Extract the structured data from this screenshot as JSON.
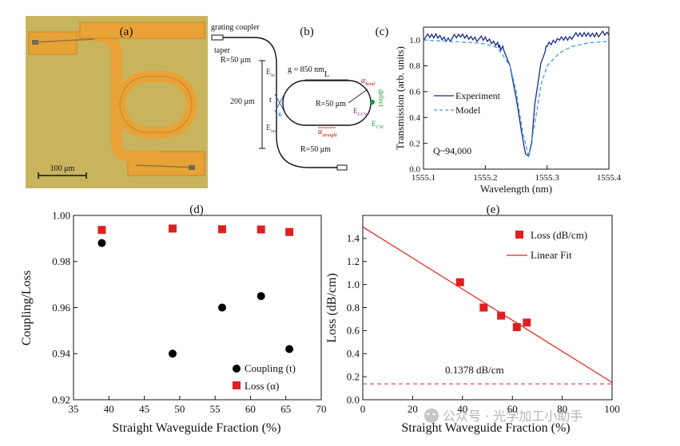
{
  "colors": {
    "chip_bg": "#c9b45e",
    "metal": "#e8a235",
    "metal_dark": "#c6842a",
    "experiment": "#1a2a8a",
    "model": "#3ba2d8",
    "loss_marker": "#e02020",
    "fit_line": "#e02020",
    "coupling_marker": "#000000",
    "red_label": "#c00000",
    "green_label": "#1a9a3a",
    "blue_label": "#3060c0",
    "purple_label": "#6a2a90"
  },
  "panel_a": {
    "label": "(a)",
    "scale_bar": "100 μm"
  },
  "panel_b": {
    "label": "(b)",
    "grating_coupler": "grating coupler",
    "taper": "taper",
    "r_top": "R=50 μm",
    "r_bottom": "R=50 μm",
    "r_center": "R=50 μm",
    "gap": "g = 850 nm",
    "length": "L",
    "height": "200 μm",
    "e_in": "E",
    "e_in_sub": "in",
    "e_out": "E",
    "e_out_sub": "out",
    "t_label": "t",
    "kappa_label": "κ",
    "alpha_bend": "α",
    "alpha_bend_sub": "bend",
    "alpha_straight": "α",
    "alpha_straight_sub": "straight",
    "e_ccw": "E",
    "e_ccw_sub": "CCW",
    "e_cw": "E",
    "e_cw_sub": "CW",
    "defect": "defect"
  },
  "panel_c": {
    "label": "(c)",
    "ylabel": "Transmission (arb. units)",
    "xlabel": "Wavelength (nm)",
    "xticks": [
      "1555.1",
      "1555.2",
      "1555.3",
      "1555.4"
    ],
    "yticks": [
      "0.0",
      "0.2",
      "0.4",
      "0.6",
      "0.8",
      "1.0"
    ],
    "legend": [
      "Experiment",
      "Model"
    ],
    "annotation": "Q~94,000"
  },
  "panel_d": {
    "label": "(d)",
    "ylabel": "Coupling/Loss",
    "xlabel": "Straight Waveguide Fraction (%)",
    "xticks": [
      "35",
      "40",
      "45",
      "50",
      "55",
      "60",
      "65",
      "70"
    ],
    "yticks": [
      "0.92",
      "0.94",
      "0.96",
      "0.98",
      "1.00"
    ],
    "legend": [
      "Coupling (t)",
      "Loss (α)"
    ]
  },
  "panel_e": {
    "label": "(e)",
    "ylabel": "Loss (dB/cm)",
    "xlabel": "Straight Waveguide Fraction (%)",
    "xticks": [
      "0",
      "20",
      "40",
      "60",
      "80",
      "100"
    ],
    "yticks": [
      "0.0",
      "0.2",
      "0.4",
      "0.6",
      "0.8",
      "1.0",
      "1.2",
      "1.4"
    ],
    "legend": [
      "Loss (dB/cm)",
      "Linear Fit"
    ],
    "annotation": "0.1378 dB/cm"
  },
  "watermark": "公众号 · 光学加工小助手",
  "chart_data": [
    {
      "type": "line",
      "title": "(c)",
      "xlabel": "Wavelength (nm)",
      "ylabel": "Transmission (arb. units)",
      "xlim": [
        1555.1,
        1555.4
      ],
      "ylim": [
        0.0,
        1.1
      ],
      "series": [
        {
          "name": "Experiment",
          "x": [
            1555.1,
            1555.12,
            1555.14,
            1555.16,
            1555.18,
            1555.2,
            1555.22,
            1555.23,
            1555.24,
            1555.25,
            1555.26,
            1555.265,
            1555.27,
            1555.275,
            1555.28,
            1555.29,
            1555.3,
            1555.32,
            1555.34,
            1555.36,
            1555.38,
            1555.4
          ],
          "y": [
            1.02,
            1.03,
            1.01,
            1.03,
            1.02,
            1.0,
            0.97,
            0.92,
            0.8,
            0.55,
            0.25,
            0.12,
            0.1,
            0.2,
            0.5,
            0.82,
            0.95,
            1.01,
            1.03,
            1.04,
            1.05,
            1.04
          ]
        },
        {
          "name": "Model",
          "x": [
            1555.1,
            1555.14,
            1555.18,
            1555.2,
            1555.22,
            1555.24,
            1555.25,
            1555.26,
            1555.27,
            1555.28,
            1555.29,
            1555.3,
            1555.32,
            1555.34,
            1555.37,
            1555.4
          ],
          "y": [
            1.0,
            0.99,
            0.98,
            0.97,
            0.94,
            0.8,
            0.6,
            0.3,
            0.1,
            0.35,
            0.65,
            0.8,
            0.9,
            0.95,
            0.98,
            0.99
          ]
        }
      ]
    },
    {
      "type": "scatter",
      "title": "(d)",
      "xlabel": "Straight Waveguide Fraction (%)",
      "ylabel": "Coupling/Loss",
      "xlim": [
        35,
        70
      ],
      "ylim": [
        0.92,
        1.0
      ],
      "legend_position": "bottom-right",
      "series": [
        {
          "name": "Coupling (t)",
          "x": [
            39,
            49,
            56,
            61.5,
            65.5
          ],
          "y": [
            0.988,
            0.94,
            0.96,
            0.965,
            0.942
          ]
        },
        {
          "name": "Loss (α)",
          "x": [
            39,
            49,
            56,
            61.5,
            65.5
          ],
          "y": [
            0.9937,
            0.9943,
            0.994,
            0.9939,
            0.9928
          ]
        }
      ]
    },
    {
      "type": "scatter",
      "title": "(e)",
      "xlabel": "Straight Waveguide Fraction (%)",
      "ylabel": "Loss (dB/cm)",
      "xlim": [
        0,
        100
      ],
      "ylim": [
        0.0,
        1.6
      ],
      "legend_position": "top-right",
      "series": [
        {
          "name": "Loss (dB/cm)",
          "x": [
            39,
            48.5,
            55.5,
            61.8,
            65.8
          ],
          "y": [
            1.02,
            0.8,
            0.73,
            0.63,
            0.67
          ]
        },
        {
          "name": "Linear Fit",
          "x": [
            0,
            100
          ],
          "y": [
            1.5,
            0.15
          ]
        }
      ],
      "reference_line": {
        "y": 0.1378,
        "label": "0.1378 dB/cm",
        "style": "dashed"
      }
    }
  ]
}
